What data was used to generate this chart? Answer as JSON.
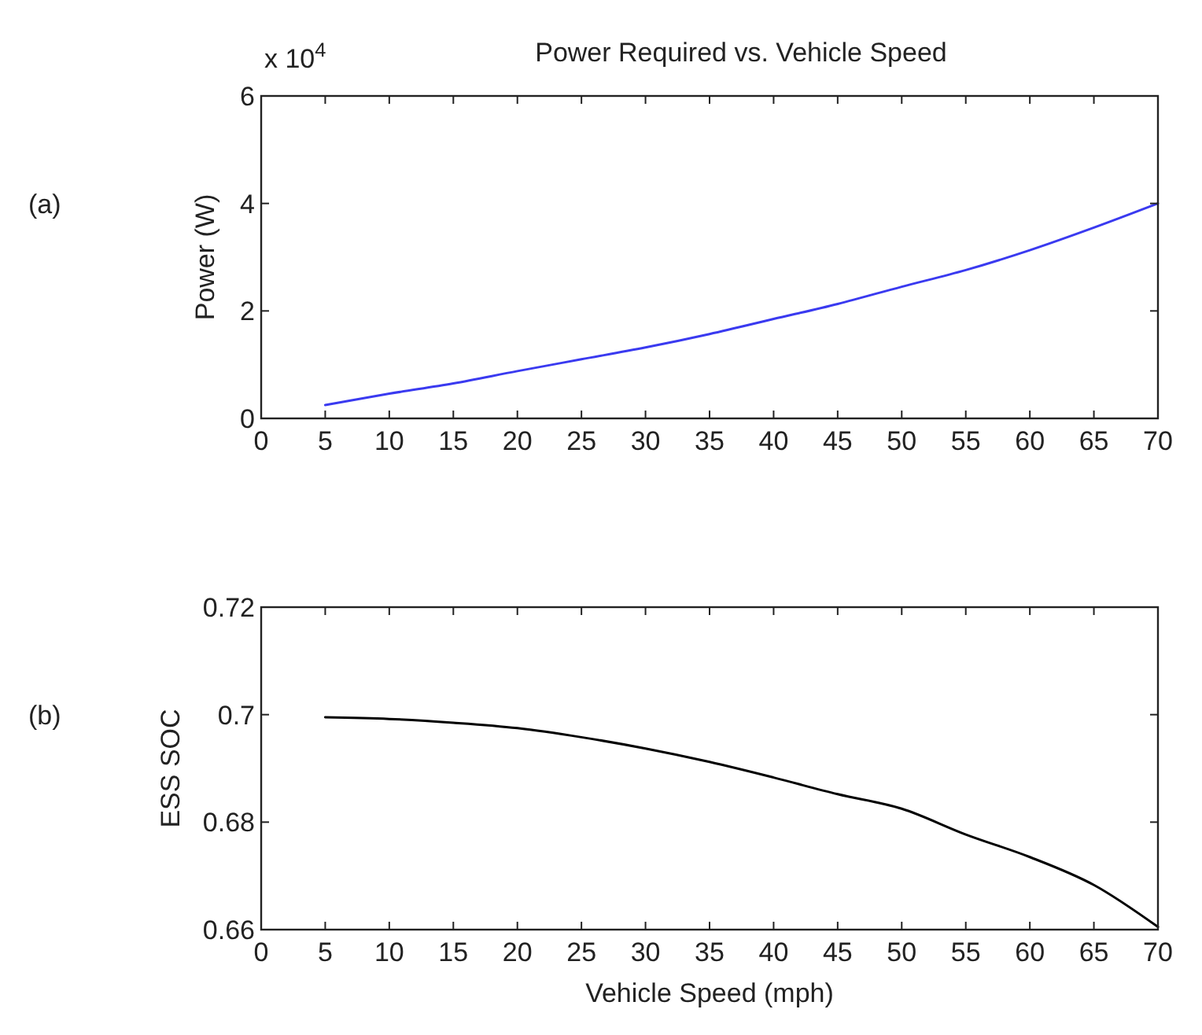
{
  "chart_data": [
    {
      "type": "line",
      "title": "Power Required vs. Vehicle Speed",
      "ylabel": "Power (W)",
      "annotations": [
        "(a)",
        "x 10$^{4}$"
      ],
      "x": [
        5,
        10,
        15,
        20,
        25,
        30,
        35,
        40,
        45,
        50,
        55,
        60,
        65,
        70
      ],
      "xlim": [
        0,
        70
      ],
      "xticks": [
        0,
        5,
        10,
        15,
        20,
        25,
        30,
        35,
        40,
        45,
        50,
        55,
        60,
        65,
        70
      ],
      "ylim": [
        0,
        6
      ],
      "yticks": [
        0,
        2,
        4,
        6
      ],
      "grid": false,
      "series": [
        {
          "color": "#3a3af0",
          "values": [
            0.25,
            0.46,
            0.65,
            0.88,
            1.1,
            1.32,
            1.57,
            1.85,
            2.13,
            2.45,
            2.76,
            3.13,
            3.55,
            4.0
          ]
        }
      ]
    },
    {
      "type": "line",
      "xlabel": "Vehicle Speed (mph)",
      "ylabel": "ESS SOC",
      "annotations": [
        "(b)"
      ],
      "x": [
        5,
        10,
        15,
        20,
        25,
        30,
        35,
        40,
        45,
        50,
        55,
        60,
        65,
        70
      ],
      "xlim": [
        0,
        70
      ],
      "xticks": [
        0,
        5,
        10,
        15,
        20,
        25,
        30,
        35,
        40,
        45,
        50,
        55,
        60,
        65,
        70
      ],
      "ylim": [
        0.66,
        0.72
      ],
      "yticks": [
        0.66,
        0.68,
        0.7,
        0.72
      ],
      "grid": false,
      "series": [
        {
          "color": "#000000",
          "values": [
            0.6995,
            0.6992,
            0.6985,
            0.6975,
            0.6958,
            0.6937,
            0.6912,
            0.6883,
            0.6852,
            0.6825,
            0.6777,
            0.6735,
            0.6683,
            0.6605
          ]
        }
      ]
    }
  ]
}
